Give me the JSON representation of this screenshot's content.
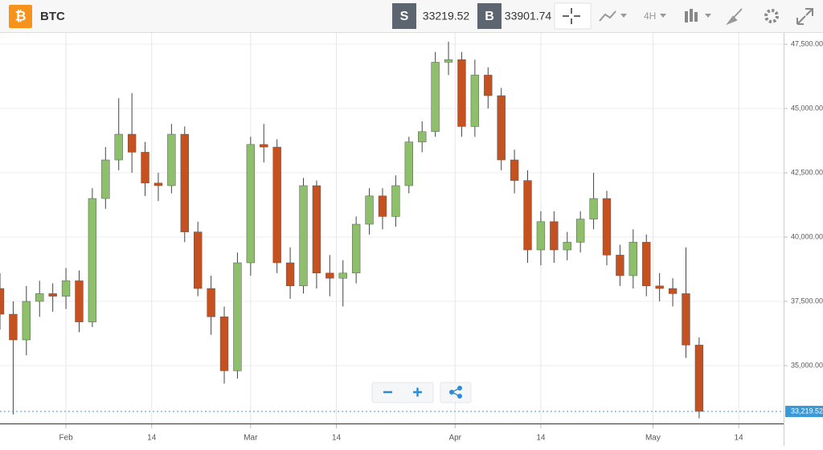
{
  "header": {
    "symbol": "BTC",
    "sell_label": "S",
    "sell_price": "33219.52",
    "buy_label": "B",
    "buy_price": "33901.74",
    "timeframe": "4H"
  },
  "chart_data": {
    "type": "candlestick",
    "up_color": "#8ec06c",
    "down_color": "#c4511f",
    "grid": true,
    "x": [
      22,
      24,
      26,
      28,
      30,
      32,
      34,
      36,
      38,
      40,
      42,
      44,
      46,
      48,
      50,
      52,
      54,
      56,
      58,
      60,
      62,
      64,
      66,
      68,
      70,
      72,
      74,
      76,
      78,
      80,
      82,
      84,
      86,
      88,
      90,
      92,
      94,
      96,
      98,
      100,
      102,
      104,
      106,
      108,
      110,
      112,
      114,
      116,
      118,
      120,
      122,
      124,
      126,
      128
    ],
    "open": [
      38000,
      37000,
      36000,
      37500,
      37800,
      37700,
      38300,
      36700,
      41500,
      43000,
      44000,
      43300,
      42100,
      42000,
      44000,
      40200,
      38000,
      36900,
      34800,
      39000,
      43600,
      43500,
      39000,
      38100,
      42000,
      38600,
      38400,
      38600,
      40500,
      41600,
      40800,
      42000,
      43700,
      44100,
      46800,
      46900,
      44300,
      46300,
      45500,
      43000,
      42200,
      39500,
      40600,
      39500,
      39800,
      40700,
      41500,
      39300,
      38500,
      39800,
      38100,
      38000,
      37800,
      35800
    ],
    "high": [
      38600,
      37500,
      38100,
      38300,
      38200,
      38800,
      38700,
      41900,
      43500,
      45400,
      45600,
      43700,
      42500,
      44400,
      44300,
      40600,
      38500,
      37300,
      39400,
      43900,
      44400,
      43800,
      39600,
      42300,
      42200,
      39300,
      39100,
      40800,
      41900,
      41900,
      42400,
      43900,
      44500,
      47200,
      47600,
      47200,
      46900,
      46600,
      45800,
      43400,
      42600,
      41000,
      41000,
      40200,
      41000,
      42500,
      41800,
      39700,
      40300,
      40100,
      38600,
      38400,
      39600,
      36100
    ],
    "low": [
      36400,
      33100,
      35400,
      36900,
      37100,
      37200,
      36300,
      36500,
      41100,
      42600,
      42500,
      41600,
      41400,
      41700,
      39800,
      37700,
      36200,
      34300,
      34500,
      38500,
      42900,
      38600,
      37600,
      37800,
      38000,
      37700,
      37300,
      38200,
      40100,
      40300,
      40400,
      41700,
      43300,
      43900,
      46300,
      43900,
      43900,
      45000,
      42600,
      41700,
      39000,
      38900,
      39000,
      39100,
      39400,
      40300,
      38900,
      38100,
      38000,
      37700,
      37500,
      37300,
      35300,
      32950
    ],
    "close": [
      37000,
      36000,
      37500,
      37800,
      37700,
      38300,
      36700,
      41500,
      43000,
      44000,
      43300,
      42100,
      42000,
      44000,
      40200,
      38000,
      36900,
      34800,
      39000,
      43600,
      43500,
      39000,
      38100,
      42000,
      38600,
      38400,
      38600,
      40500,
      41600,
      40800,
      42000,
      43700,
      44100,
      46800,
      46900,
      44300,
      46300,
      45500,
      43000,
      42200,
      39500,
      40600,
      39500,
      39800,
      40700,
      41500,
      39300,
      38500,
      39800,
      38100,
      38000,
      37800,
      35800,
      33220
    ],
    "xlim": [
      22,
      140.2
    ],
    "ylim": [
      32750,
      47970
    ],
    "xticks": [
      {
        "value": 32,
        "label": "Feb"
      },
      {
        "value": 45,
        "label": "14"
      },
      {
        "value": 60,
        "label": "Mar"
      },
      {
        "value": 73,
        "label": "14"
      },
      {
        "value": 91,
        "label": "Apr"
      },
      {
        "value": 104,
        "label": "14"
      },
      {
        "value": 121,
        "label": "May"
      },
      {
        "value": 134,
        "label": "14"
      }
    ],
    "yticks": [
      {
        "value": 35000,
        "label": "35,000.00"
      },
      {
        "value": 37500,
        "label": "37,500.00"
      },
      {
        "value": 40000,
        "label": "40,000.00"
      },
      {
        "value": 42500,
        "label": "42,500.00"
      },
      {
        "value": 45000,
        "label": "45,000.00"
      },
      {
        "value": 47500,
        "label": "47,500.00"
      }
    ],
    "last_price": {
      "value": 33219.52,
      "label": "33,219.52"
    }
  }
}
